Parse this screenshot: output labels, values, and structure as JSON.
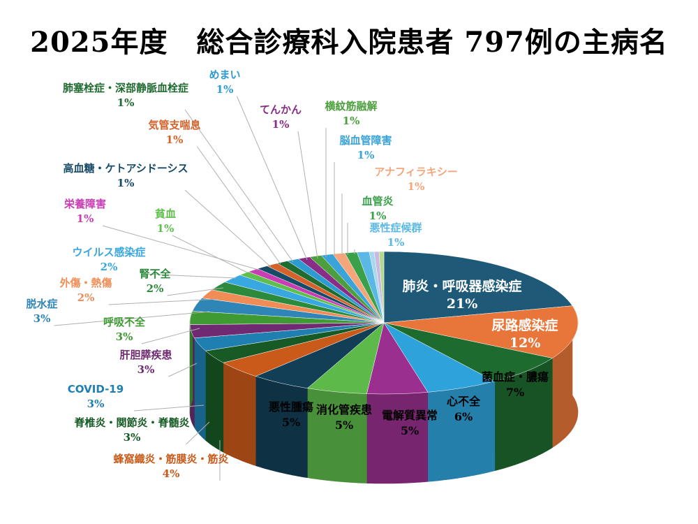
{
  "chart_data": {
    "type": "pie",
    "title": "2025年度　総合診療科入院患者 797例の主病名",
    "slices": [
      {
        "label": "肺炎・呼吸器感染症",
        "pct_label": "21%",
        "value": 21,
        "color": "#1e5a78"
      },
      {
        "label": "尿路感染症",
        "pct_label": "12%",
        "value": 12,
        "color": "#e8763a"
      },
      {
        "label": "菌血症・膿瘍",
        "pct_label": "7%",
        "value": 7,
        "color": "#1d6b2e"
      },
      {
        "label": "心不全",
        "pct_label": "6%",
        "value": 6,
        "color": "#2ea3db"
      },
      {
        "label": "電解質異常",
        "pct_label": "5%",
        "value": 5,
        "color": "#9a2f8f"
      },
      {
        "label": "消化管疾患",
        "pct_label": "5%",
        "value": 5,
        "color": "#5db94a"
      },
      {
        "label": "悪性腫瘍",
        "pct_label": "5%",
        "value": 5,
        "color": "#123f56"
      },
      {
        "label": "蜂窩織炎・筋膜炎・筋炎",
        "pct_label": "4%",
        "value": 4,
        "color": "#c95a1a"
      },
      {
        "label": "脊椎炎・関節炎・脊髄炎",
        "pct_label": "3%",
        "value": 3,
        "color": "#175a25"
      },
      {
        "label": "COVID-19",
        "pct_label": "3%",
        "value": 3,
        "color": "#1f7fb0"
      },
      {
        "label": "肝胆膵疾患",
        "pct_label": "3%",
        "value": 3,
        "color": "#6f2a72"
      },
      {
        "label": "呼吸不全",
        "pct_label": "3%",
        "value": 3,
        "color": "#3f9a34"
      },
      {
        "label": "脱水症",
        "pct_label": "3%",
        "value": 3,
        "color": "#2f86b6"
      },
      {
        "label": "外傷・熱傷",
        "pct_label": "2%",
        "value": 2,
        "color": "#f08c55"
      },
      {
        "label": "腎不全",
        "pct_label": "2%",
        "value": 2,
        "color": "#2c8a3c"
      },
      {
        "label": "ウイルス感染症",
        "pct_label": "2%",
        "value": 2,
        "color": "#3aa8e0"
      },
      {
        "label": "貧血",
        "pct_label": "1%",
        "value": 1,
        "color": "#5fbf4c"
      },
      {
        "label": "栄養障害",
        "pct_label": "1%",
        "value": 1,
        "color": "#c83cb4"
      },
      {
        "label": "高血糖・ケトアシドーシス",
        "pct_label": "1%",
        "value": 1,
        "color": "#174a66"
      },
      {
        "label": "気管支喘息",
        "pct_label": "1%",
        "value": 1,
        "color": "#d4622a"
      },
      {
        "label": "肺塞栓症・深部静脈血栓症",
        "pct_label": "1%",
        "value": 1,
        "color": "#1f6b30"
      },
      {
        "label": "めまい",
        "pct_label": "1%",
        "value": 1,
        "color": "#2b9bd0"
      },
      {
        "label": "てんかん",
        "pct_label": "1%",
        "value": 1,
        "color": "#8a2d86"
      },
      {
        "label": "横紋筋融解",
        "pct_label": "1%",
        "value": 1,
        "color": "#4c9f3c"
      },
      {
        "label": "脳血管障害",
        "pct_label": "1%",
        "value": 1,
        "color": "#3aa3d8"
      },
      {
        "label": "アナフィラキシー",
        "pct_label": "1%",
        "value": 1,
        "color": "#f4a67a"
      },
      {
        "label": "血管炎",
        "pct_label": "1%",
        "value": 1,
        "color": "#3aa04a"
      },
      {
        "label": "悪性症候群",
        "pct_label": "1%",
        "value": 1,
        "color": "#5ab8e4"
      },
      {
        "label": "",
        "pct_label": "",
        "value": 0.4,
        "color": "#a8d7ef"
      },
      {
        "label": "",
        "pct_label": "",
        "value": 0.4,
        "color": "#c9b8e0"
      },
      {
        "label": "",
        "pct_label": "",
        "value": 0.4,
        "color": "#b5d98f"
      }
    ]
  }
}
